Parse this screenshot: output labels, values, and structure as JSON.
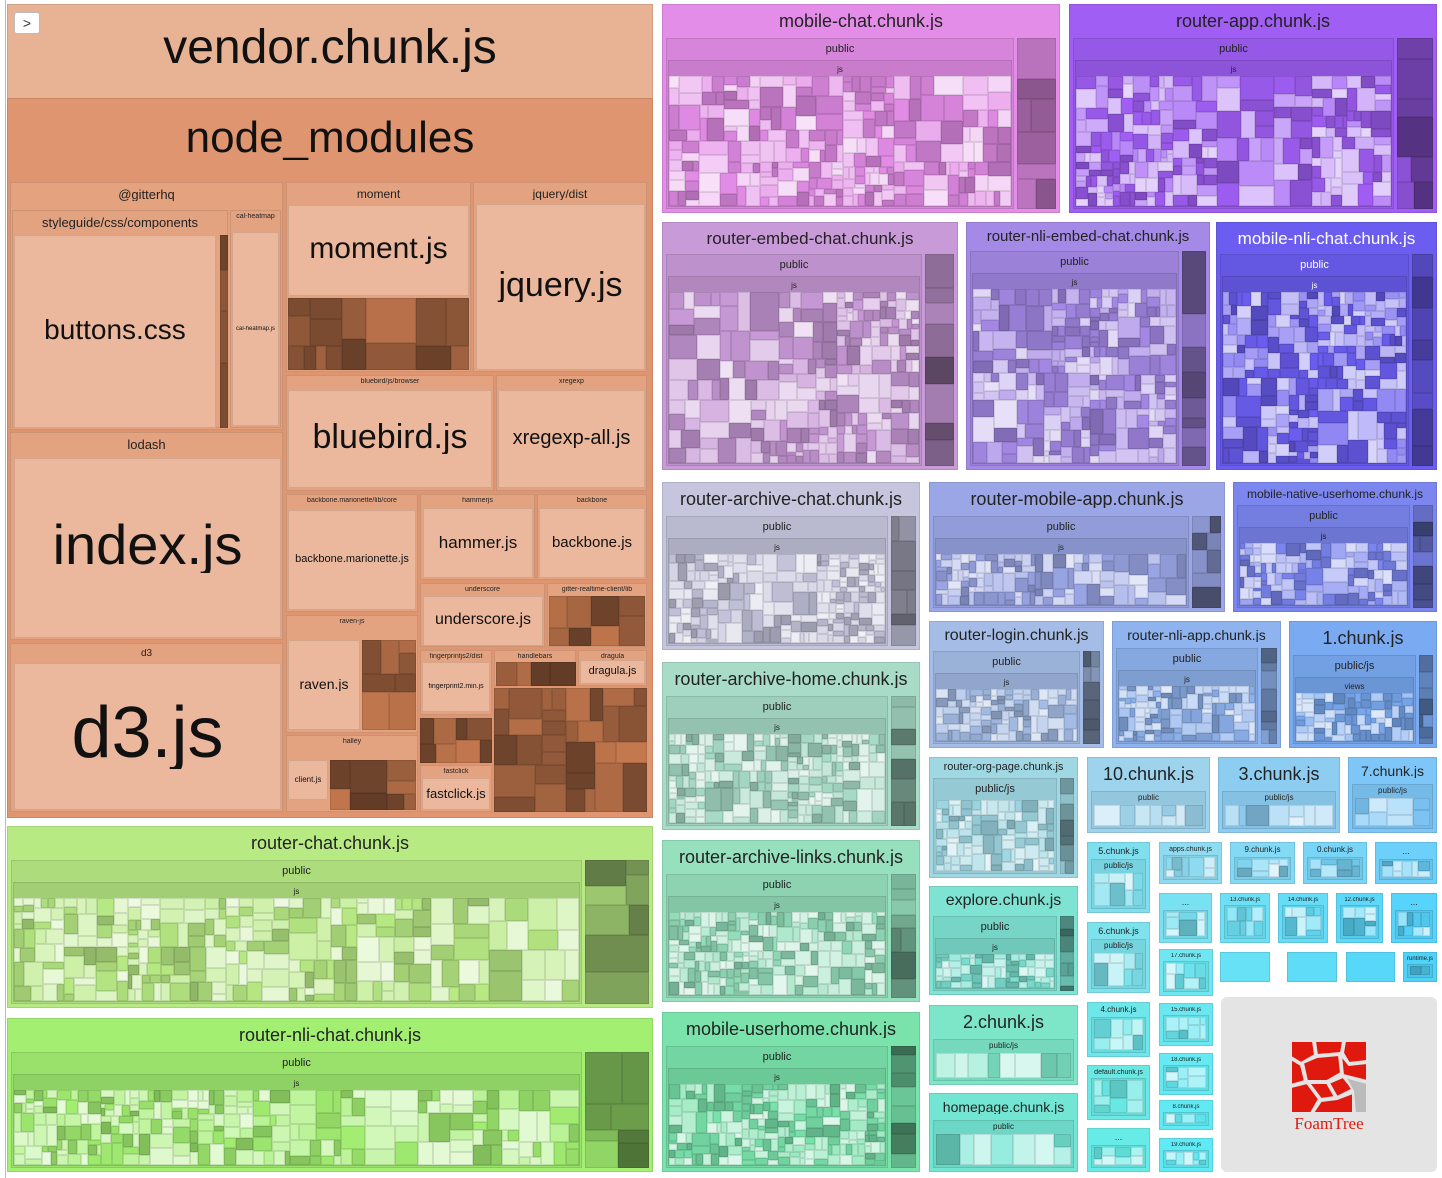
{
  "toggle": ">",
  "vendor": {
    "title": "vendor.chunk.js",
    "group": "node_modules",
    "modules": [
      {
        "label": "@gitterhq"
      },
      {
        "label": "styleguide/css/components",
        "file": "buttons.css"
      },
      {
        "label": "cal-heatmap",
        "file": "cal-heatmap.js"
      },
      {
        "label": "lodash",
        "file": "index.js"
      },
      {
        "label": "d3",
        "file": "d3.js"
      },
      {
        "label": "moment",
        "file": "moment.js"
      },
      {
        "label": "jquery/dist",
        "file": "jquery.js"
      },
      {
        "label": "bluebird/js/browser",
        "file": "bluebird.js"
      },
      {
        "label": "xregexp",
        "file": "xregexp-all.js"
      },
      {
        "label": "backbone.marionette/lib/core",
        "file": "backbone.marionette.js"
      },
      {
        "label": "hammerjs",
        "file": "hammer.js"
      },
      {
        "label": "backbone",
        "file": "backbone.js"
      },
      {
        "label": "underscore",
        "file": "underscore.js"
      },
      {
        "label": "gitter-realtime-client/lib"
      },
      {
        "label": "raven-js",
        "file": "raven.js"
      },
      {
        "label": "fingerprintjs2/dist",
        "file": "fingerprint2.min.js"
      },
      {
        "label": "handlebars"
      },
      {
        "label": "dragula",
        "file": "dragula.js"
      },
      {
        "label": "halley",
        "file": "client.js"
      },
      {
        "label": "fastclick",
        "file": "fastclick.js"
      }
    ]
  },
  "chunks": [
    {
      "title": "mobile-chat.chunk.js",
      "path": [
        "public",
        "js"
      ]
    },
    {
      "title": "router-app.chunk.js",
      "path": [
        "public",
        "js"
      ]
    },
    {
      "title": "router-embed-chat.chunk.js",
      "path": [
        "public",
        "js"
      ]
    },
    {
      "title": "router-nli-embed-chat.chunk.js",
      "path": [
        "public",
        "js"
      ]
    },
    {
      "title": "mobile-nli-chat.chunk.js",
      "path": [
        "public",
        "js"
      ]
    },
    {
      "title": "router-archive-chat.chunk.js",
      "path": [
        "public",
        "js"
      ]
    },
    {
      "title": "router-mobile-app.chunk.js",
      "path": [
        "public",
        "js"
      ]
    },
    {
      "title": "mobile-native-userhome.chunk.js",
      "path": [
        "public",
        "js"
      ]
    },
    {
      "title": "router-login.chunk.js",
      "path": [
        "public",
        "js"
      ]
    },
    {
      "title": "router-nli-app.chunk.js",
      "path": [
        "public",
        "js"
      ]
    },
    {
      "title": "1.chunk.js",
      "path": [
        "public/js",
        "views"
      ]
    },
    {
      "title": "router-archive-home.chunk.js",
      "path": [
        "public",
        "js"
      ]
    },
    {
      "title": "router-archive-links.chunk.js",
      "path": [
        "public",
        "js"
      ]
    },
    {
      "title": "mobile-userhome.chunk.js",
      "path": [
        "public",
        "js"
      ]
    },
    {
      "title": "router-org-page.chunk.js",
      "path": [
        "public/js"
      ]
    },
    {
      "title": "10.chunk.js",
      "path": [
        "public"
      ]
    },
    {
      "title": "3.chunk.js",
      "path": [
        "public/js"
      ]
    },
    {
      "title": "7.chunk.js",
      "path": [
        "public/js"
      ]
    },
    {
      "title": "explore.chunk.js",
      "path": [
        "public",
        "js"
      ]
    },
    {
      "title": "2.chunk.js",
      "path": [
        "public/js"
      ]
    },
    {
      "title": "homepage.chunk.js",
      "path": [
        "public"
      ]
    },
    {
      "title": "router-chat.chunk.js",
      "path": [
        "public",
        "js"
      ]
    },
    {
      "title": "router-nli-chat.chunk.js",
      "path": [
        "public",
        "js"
      ]
    },
    {
      "title": "5.chunk.js",
      "path": [
        "public/js"
      ]
    },
    {
      "title": "6.chunk.js",
      "path": [
        "public/js"
      ]
    },
    {
      "title": "4.chunk.js",
      "path": []
    },
    {
      "title": "default.chunk.js",
      "path": []
    },
    {
      "title": "...",
      "path": []
    },
    {
      "title": "apps.chunk.js",
      "path": []
    },
    {
      "title": "9.chunk.js",
      "path": []
    },
    {
      "title": "0.chunk.js",
      "path": []
    },
    {
      "title": "...",
      "path": []
    },
    {
      "title": "...",
      "path": []
    },
    {
      "title": "13.chunk.js",
      "path": []
    },
    {
      "title": "14.chunk.js",
      "path": []
    },
    {
      "title": "12.chunk.js",
      "path": []
    },
    {
      "title": "...",
      "path": []
    },
    {
      "title": "17.chunk.js",
      "path": []
    },
    {
      "title": "15.chunk.js",
      "path": []
    },
    {
      "title": "18.chunk.js",
      "path": []
    },
    {
      "title": "8.chunk.js",
      "path": []
    },
    {
      "title": "19.chunk.js",
      "path": []
    },
    {
      "title": "runtime.js",
      "path": []
    }
  ],
  "logo": "FoamTree"
}
